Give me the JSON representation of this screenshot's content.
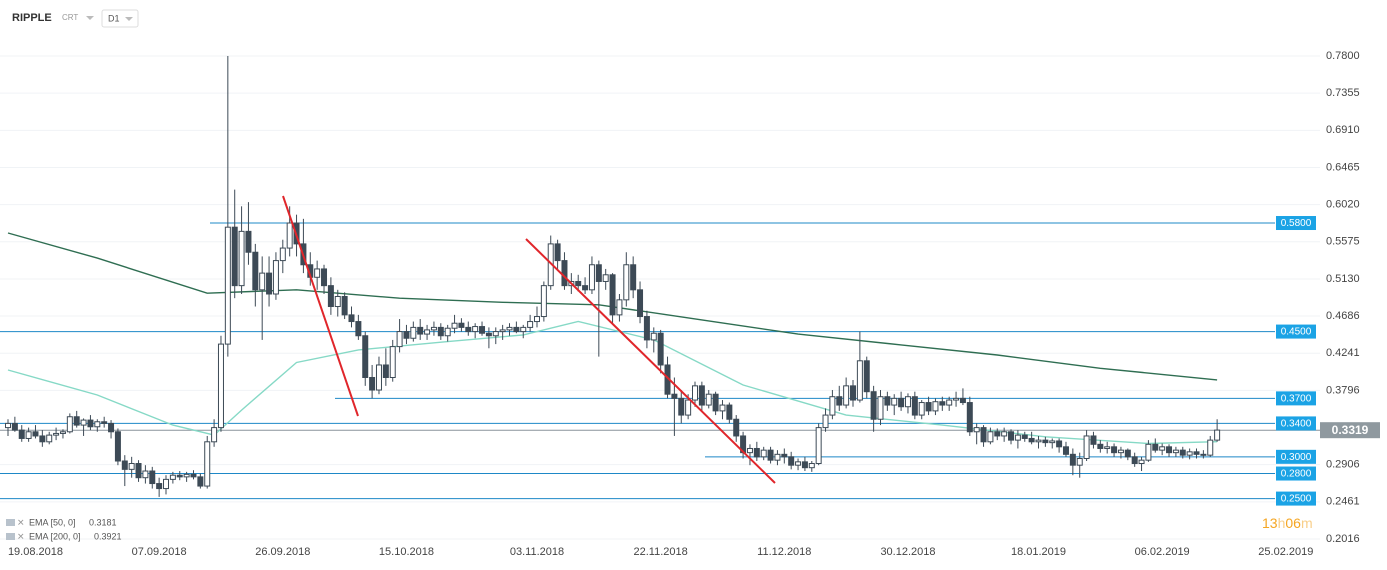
{
  "header": {
    "symbol": "RIPPLE",
    "type": "CRT",
    "interval": "D1"
  },
  "countdown": [
    "13",
    "h",
    "06",
    "m"
  ],
  "chart_data": {
    "type": "candlestick",
    "categories": [
      null,
      null,
      null,
      null,
      "19.08.2018",
      null,
      null,
      null,
      null,
      null,
      null,
      null,
      null,
      null,
      null,
      null,
      null,
      null,
      null,
      null,
      null,
      null,
      "07.09.2018",
      null,
      null,
      null,
      null,
      null,
      null,
      null,
      null,
      null,
      null,
      null,
      null,
      null,
      null,
      null,
      null,
      null,
      "26.09.2018",
      null,
      null,
      null,
      null,
      null,
      null,
      null,
      null,
      null,
      null,
      null,
      null,
      null,
      null,
      null,
      null,
      null,
      "15.10.2018",
      null,
      null,
      null,
      null,
      null,
      null,
      null,
      null,
      null,
      null,
      null,
      null,
      null,
      null,
      null,
      null,
      null,
      null,
      "03.11.2018",
      null,
      null,
      null,
      null,
      null,
      null,
      null,
      null,
      null,
      null,
      null,
      null,
      null,
      null,
      null,
      null,
      null,
      "22.11.2018",
      null,
      null,
      null,
      null,
      null,
      null,
      null,
      null,
      null,
      null,
      null,
      null,
      null,
      null,
      null,
      null,
      null,
      "11.12.2018",
      null,
      null,
      null,
      null,
      null,
      null,
      null,
      null,
      null,
      null,
      null,
      null,
      null,
      null,
      null,
      null,
      null,
      "30.12.2018",
      null,
      null,
      null,
      null,
      null,
      null,
      null,
      null,
      null,
      null,
      null,
      null,
      null,
      null,
      null,
      null,
      null,
      null,
      "18.01.2019",
      null,
      null,
      null,
      null,
      null,
      null,
      null,
      null,
      null,
      null,
      null,
      null,
      null,
      null,
      null,
      null,
      null,
      "06.02.2019",
      null,
      null,
      null,
      null,
      null,
      null,
      null,
      null,
      null,
      null,
      null,
      null,
      null,
      null,
      null,
      null,
      null,
      "25.02.2019"
    ],
    "values": [
      [
        0.335,
        0.345,
        0.325,
        0.34
      ],
      [
        0.34,
        0.348,
        0.33,
        0.332
      ],
      [
        0.332,
        0.338,
        0.318,
        0.322
      ],
      [
        0.322,
        0.335,
        0.318,
        0.33
      ],
      [
        0.33,
        0.338,
        0.322,
        0.325
      ],
      [
        0.325,
        0.332,
        0.312,
        0.318
      ],
      [
        0.318,
        0.33,
        0.315,
        0.326
      ],
      [
        0.326,
        0.335,
        0.32,
        0.328
      ],
      [
        0.328,
        0.333,
        0.322,
        0.33
      ],
      [
        0.33,
        0.352,
        0.328,
        0.348
      ],
      [
        0.348,
        0.355,
        0.335,
        0.338
      ],
      [
        0.338,
        0.346,
        0.325,
        0.344
      ],
      [
        0.344,
        0.35,
        0.332,
        0.336
      ],
      [
        0.336,
        0.345,
        0.33,
        0.342
      ],
      [
        0.342,
        0.348,
        0.335,
        0.34
      ],
      [
        0.34,
        0.344,
        0.322,
        0.33
      ],
      [
        0.33,
        0.334,
        0.29,
        0.295
      ],
      [
        0.295,
        0.302,
        0.265,
        0.285
      ],
      [
        0.285,
        0.3,
        0.275,
        0.292
      ],
      [
        0.292,
        0.296,
        0.27,
        0.275
      ],
      [
        0.275,
        0.29,
        0.268,
        0.283
      ],
      [
        0.283,
        0.288,
        0.262,
        0.268
      ],
      [
        0.268,
        0.275,
        0.252,
        0.262
      ],
      [
        0.262,
        0.278,
        0.255,
        0.273
      ],
      [
        0.273,
        0.282,
        0.268,
        0.278
      ],
      [
        0.278,
        0.283,
        0.272,
        0.276
      ],
      [
        0.276,
        0.282,
        0.27,
        0.279
      ],
      [
        0.279,
        0.284,
        0.273,
        0.276
      ],
      [
        0.276,
        0.28,
        0.262,
        0.265
      ],
      [
        0.265,
        0.325,
        0.262,
        0.318
      ],
      [
        0.318,
        0.345,
        0.312,
        0.335
      ],
      [
        0.335,
        0.445,
        0.33,
        0.435
      ],
      [
        0.435,
        0.78,
        0.42,
        0.575
      ],
      [
        0.575,
        0.62,
        0.49,
        0.505
      ],
      [
        0.505,
        0.6,
        0.495,
        0.57
      ],
      [
        0.57,
        0.605,
        0.53,
        0.545
      ],
      [
        0.545,
        0.555,
        0.48,
        0.5
      ],
      [
        0.5,
        0.54,
        0.44,
        0.52
      ],
      [
        0.52,
        0.54,
        0.48,
        0.495
      ],
      [
        0.495,
        0.545,
        0.488,
        0.535
      ],
      [
        0.535,
        0.56,
        0.52,
        0.55
      ],
      [
        0.55,
        0.6,
        0.54,
        0.58
      ],
      [
        0.58,
        0.59,
        0.54,
        0.555
      ],
      [
        0.555,
        0.585,
        0.52,
        0.53
      ],
      [
        0.53,
        0.545,
        0.505,
        0.515
      ],
      [
        0.515,
        0.535,
        0.5,
        0.525
      ],
      [
        0.525,
        0.53,
        0.495,
        0.505
      ],
      [
        0.505,
        0.515,
        0.47,
        0.48
      ],
      [
        0.48,
        0.5,
        0.468,
        0.492
      ],
      [
        0.492,
        0.497,
        0.465,
        0.47
      ],
      [
        0.47,
        0.48,
        0.455,
        0.462
      ],
      [
        0.462,
        0.47,
        0.44,
        0.445
      ],
      [
        0.445,
        0.45,
        0.385,
        0.395
      ],
      [
        0.395,
        0.41,
        0.37,
        0.38
      ],
      [
        0.38,
        0.42,
        0.375,
        0.41
      ],
      [
        0.41,
        0.43,
        0.385,
        0.395
      ],
      [
        0.395,
        0.44,
        0.39,
        0.432
      ],
      [
        0.432,
        0.465,
        0.425,
        0.45
      ],
      [
        0.45,
        0.458,
        0.435,
        0.442
      ],
      [
        0.442,
        0.462,
        0.438,
        0.455
      ],
      [
        0.455,
        0.465,
        0.44,
        0.447
      ],
      [
        0.447,
        0.458,
        0.44,
        0.452
      ],
      [
        0.452,
        0.462,
        0.445,
        0.455
      ],
      [
        0.455,
        0.46,
        0.44,
        0.445
      ],
      [
        0.445,
        0.458,
        0.438,
        0.454
      ],
      [
        0.454,
        0.47,
        0.448,
        0.46
      ],
      [
        0.46,
        0.466,
        0.45,
        0.455
      ],
      [
        0.455,
        0.462,
        0.445,
        0.45
      ],
      [
        0.45,
        0.46,
        0.442,
        0.456
      ],
      [
        0.456,
        0.462,
        0.445,
        0.448
      ],
      [
        0.448,
        0.455,
        0.43,
        0.445
      ],
      [
        0.445,
        0.455,
        0.435,
        0.45
      ],
      [
        0.45,
        0.458,
        0.44,
        0.452
      ],
      [
        0.452,
        0.46,
        0.445,
        0.455
      ],
      [
        0.455,
        0.462,
        0.448,
        0.45
      ],
      [
        0.45,
        0.458,
        0.442,
        0.455
      ],
      [
        0.455,
        0.47,
        0.45,
        0.462
      ],
      [
        0.462,
        0.48,
        0.455,
        0.468
      ],
      [
        0.468,
        0.51,
        0.462,
        0.505
      ],
      [
        0.505,
        0.565,
        0.5,
        0.555
      ],
      [
        0.555,
        0.56,
        0.525,
        0.535
      ],
      [
        0.535,
        0.545,
        0.5,
        0.505
      ],
      [
        0.505,
        0.52,
        0.495,
        0.51
      ],
      [
        0.51,
        0.518,
        0.498,
        0.505
      ],
      [
        0.505,
        0.515,
        0.495,
        0.5
      ],
      [
        0.5,
        0.54,
        0.495,
        0.53
      ],
      [
        0.53,
        0.535,
        0.42,
        0.51
      ],
      [
        0.51,
        0.525,
        0.5,
        0.518
      ],
      [
        0.518,
        0.52,
        0.46,
        0.47
      ],
      [
        0.47,
        0.495,
        0.462,
        0.488
      ],
      [
        0.488,
        0.545,
        0.48,
        0.53
      ],
      [
        0.53,
        0.54,
        0.49,
        0.5
      ],
      [
        0.5,
        0.51,
        0.46,
        0.468
      ],
      [
        0.468,
        0.475,
        0.43,
        0.44
      ],
      [
        0.44,
        0.455,
        0.425,
        0.448
      ],
      [
        0.448,
        0.452,
        0.4,
        0.41
      ],
      [
        0.41,
        0.42,
        0.37,
        0.375
      ],
      [
        0.375,
        0.395,
        0.325,
        0.37
      ],
      [
        0.37,
        0.38,
        0.34,
        0.35
      ],
      [
        0.35,
        0.375,
        0.345,
        0.368
      ],
      [
        0.368,
        0.39,
        0.36,
        0.385
      ],
      [
        0.385,
        0.39,
        0.355,
        0.362
      ],
      [
        0.362,
        0.38,
        0.358,
        0.375
      ],
      [
        0.375,
        0.378,
        0.35,
        0.355
      ],
      [
        0.355,
        0.368,
        0.345,
        0.362
      ],
      [
        0.362,
        0.365,
        0.34,
        0.345
      ],
      [
        0.345,
        0.35,
        0.318,
        0.325
      ],
      [
        0.325,
        0.33,
        0.298,
        0.305
      ],
      [
        0.305,
        0.315,
        0.29,
        0.31
      ],
      [
        0.31,
        0.318,
        0.295,
        0.3
      ],
      [
        0.3,
        0.312,
        0.296,
        0.308
      ],
      [
        0.308,
        0.312,
        0.292,
        0.296
      ],
      [
        0.296,
        0.308,
        0.29,
        0.303
      ],
      [
        0.303,
        0.31,
        0.292,
        0.3
      ],
      [
        0.3,
        0.306,
        0.285,
        0.29
      ],
      [
        0.29,
        0.298,
        0.284,
        0.294
      ],
      [
        0.294,
        0.3,
        0.283,
        0.287
      ],
      [
        0.287,
        0.295,
        0.282,
        0.292
      ],
      [
        0.292,
        0.34,
        0.29,
        0.335
      ],
      [
        0.335,
        0.358,
        0.33,
        0.35
      ],
      [
        0.35,
        0.38,
        0.345,
        0.372
      ],
      [
        0.372,
        0.385,
        0.355,
        0.362
      ],
      [
        0.362,
        0.395,
        0.358,
        0.385
      ],
      [
        0.385,
        0.392,
        0.36,
        0.368
      ],
      [
        0.368,
        0.45,
        0.365,
        0.415
      ],
      [
        0.415,
        0.42,
        0.37,
        0.378
      ],
      [
        0.378,
        0.385,
        0.33,
        0.345
      ],
      [
        0.345,
        0.38,
        0.338,
        0.372
      ],
      [
        0.372,
        0.378,
        0.355,
        0.362
      ],
      [
        0.362,
        0.375,
        0.35,
        0.37
      ],
      [
        0.37,
        0.378,
        0.355,
        0.36
      ],
      [
        0.36,
        0.376,
        0.352,
        0.372
      ],
      [
        0.372,
        0.378,
        0.345,
        0.35
      ],
      [
        0.35,
        0.368,
        0.345,
        0.365
      ],
      [
        0.365,
        0.372,
        0.35,
        0.355
      ],
      [
        0.355,
        0.37,
        0.35,
        0.366
      ],
      [
        0.366,
        0.372,
        0.355,
        0.362
      ],
      [
        0.362,
        0.372,
        0.355,
        0.368
      ],
      [
        0.368,
        0.378,
        0.36,
        0.37
      ],
      [
        0.37,
        0.382,
        0.362,
        0.365
      ],
      [
        0.365,
        0.372,
        0.325,
        0.33
      ],
      [
        0.33,
        0.34,
        0.315,
        0.335
      ],
      [
        0.335,
        0.338,
        0.312,
        0.318
      ],
      [
        0.318,
        0.335,
        0.315,
        0.33
      ],
      [
        0.33,
        0.334,
        0.32,
        0.325
      ],
      [
        0.325,
        0.335,
        0.318,
        0.33
      ],
      [
        0.33,
        0.333,
        0.315,
        0.32
      ],
      [
        0.32,
        0.332,
        0.31,
        0.326
      ],
      [
        0.326,
        0.33,
        0.318,
        0.322
      ],
      [
        0.322,
        0.33,
        0.315,
        0.318
      ],
      [
        0.318,
        0.325,
        0.31,
        0.32
      ],
      [
        0.32,
        0.324,
        0.312,
        0.317
      ],
      [
        0.317,
        0.322,
        0.31,
        0.319
      ],
      [
        0.319,
        0.322,
        0.305,
        0.312
      ],
      [
        0.312,
        0.318,
        0.3,
        0.303
      ],
      [
        0.303,
        0.31,
        0.278,
        0.29
      ],
      [
        0.29,
        0.305,
        0.275,
        0.298
      ],
      [
        0.298,
        0.332,
        0.295,
        0.325
      ],
      [
        0.325,
        0.33,
        0.31,
        0.315
      ],
      [
        0.315,
        0.32,
        0.305,
        0.31
      ],
      [
        0.31,
        0.318,
        0.304,
        0.312
      ],
      [
        0.312,
        0.316,
        0.3,
        0.305
      ],
      [
        0.305,
        0.312,
        0.298,
        0.308
      ],
      [
        0.308,
        0.31,
        0.296,
        0.3
      ],
      [
        0.3,
        0.305,
        0.288,
        0.292
      ],
      [
        0.292,
        0.3,
        0.283,
        0.296
      ],
      [
        0.296,
        0.32,
        0.294,
        0.315
      ],
      [
        0.315,
        0.322,
        0.305,
        0.308
      ],
      [
        0.308,
        0.316,
        0.302,
        0.312
      ],
      [
        0.312,
        0.315,
        0.3,
        0.305
      ],
      [
        0.305,
        0.312,
        0.3,
        0.308
      ],
      [
        0.308,
        0.312,
        0.298,
        0.302
      ],
      [
        0.302,
        0.31,
        0.297,
        0.306
      ],
      [
        0.306,
        0.31,
        0.298,
        0.303
      ],
      [
        0.303,
        0.308,
        0.298,
        0.302
      ],
      [
        0.302,
        0.325,
        0.3,
        0.32
      ],
      [
        0.32,
        0.345,
        0.318,
        0.332
      ],
      null,
      null,
      null,
      null,
      null,
      null,
      null,
      null,
      null,
      null
    ],
    "up_color": "#ffffff",
    "down_color": "#3d4a56",
    "edge_color": "#3d4a56",
    "series": [
      {
        "name": "EMA [50, 0]",
        "type": "line",
        "color": "#86d9c6",
        "x": [
          0,
          13,
          24,
          30,
          34,
          42,
          51,
          64,
          75,
          83,
          94,
          107,
          122,
          136,
          151,
          166,
          176
        ],
        "values": [
          0.404,
          0.374,
          0.338,
          0.326,
          0.356,
          0.413,
          0.428,
          0.438,
          0.446,
          0.462,
          0.44,
          0.386,
          0.35,
          0.338,
          0.324,
          0.316,
          0.3181
        ]
      },
      {
        "name": "EMA [200, 0]",
        "type": "line",
        "color": "#2f6e52",
        "x": [
          0,
          13,
          29,
          42,
          57,
          72,
          86,
          101,
          115,
          130,
          144,
          159,
          176
        ],
        "values": [
          0.568,
          0.538,
          0.496,
          0.5,
          0.49,
          0.485,
          0.482,
          0.464,
          0.447,
          0.434,
          0.422,
          0.406,
          0.3921
        ]
      }
    ],
    "ylim": [
      0.2016,
      0.78
    ],
    "yticks": [
      {
        "value": 0.78,
        "label": "0.7800"
      },
      {
        "value": 0.7355,
        "label": "0.7355"
      },
      {
        "value": 0.691,
        "label": "0.6910"
      },
      {
        "value": 0.6465,
        "label": "0.6465"
      },
      {
        "value": 0.602,
        "label": "0.6020"
      },
      {
        "value": 0.5575,
        "label": "0.5575"
      },
      {
        "value": 0.513,
        "label": "0.5130"
      },
      {
        "value": 0.4686,
        "label": "0.4686"
      },
      {
        "value": 0.4241,
        "label": "0.4241"
      },
      {
        "value": 0.3796,
        "label": "0.3796"
      },
      {
        "value": 0.2906,
        "label": "0.2906"
      },
      {
        "value": 0.2461,
        "label": "0.2461"
      },
      {
        "value": 0.2016,
        "label": "0.2016"
      }
    ],
    "grid": true,
    "levels": [
      {
        "value": 0.58,
        "label": "0.5800"
      },
      {
        "value": 0.45,
        "label": "0.4500"
      },
      {
        "value": 0.37,
        "label": "0.3700"
      },
      {
        "value": 0.34,
        "label": "0.3400"
      },
      {
        "value": 0.3,
        "label": "0.3000"
      },
      {
        "value": 0.28,
        "label": "0.2800"
      },
      {
        "value": 0.25,
        "label": "0.2500"
      }
    ],
    "level_color": "#1e88c7",
    "last_price": 0.3319
  }
}
